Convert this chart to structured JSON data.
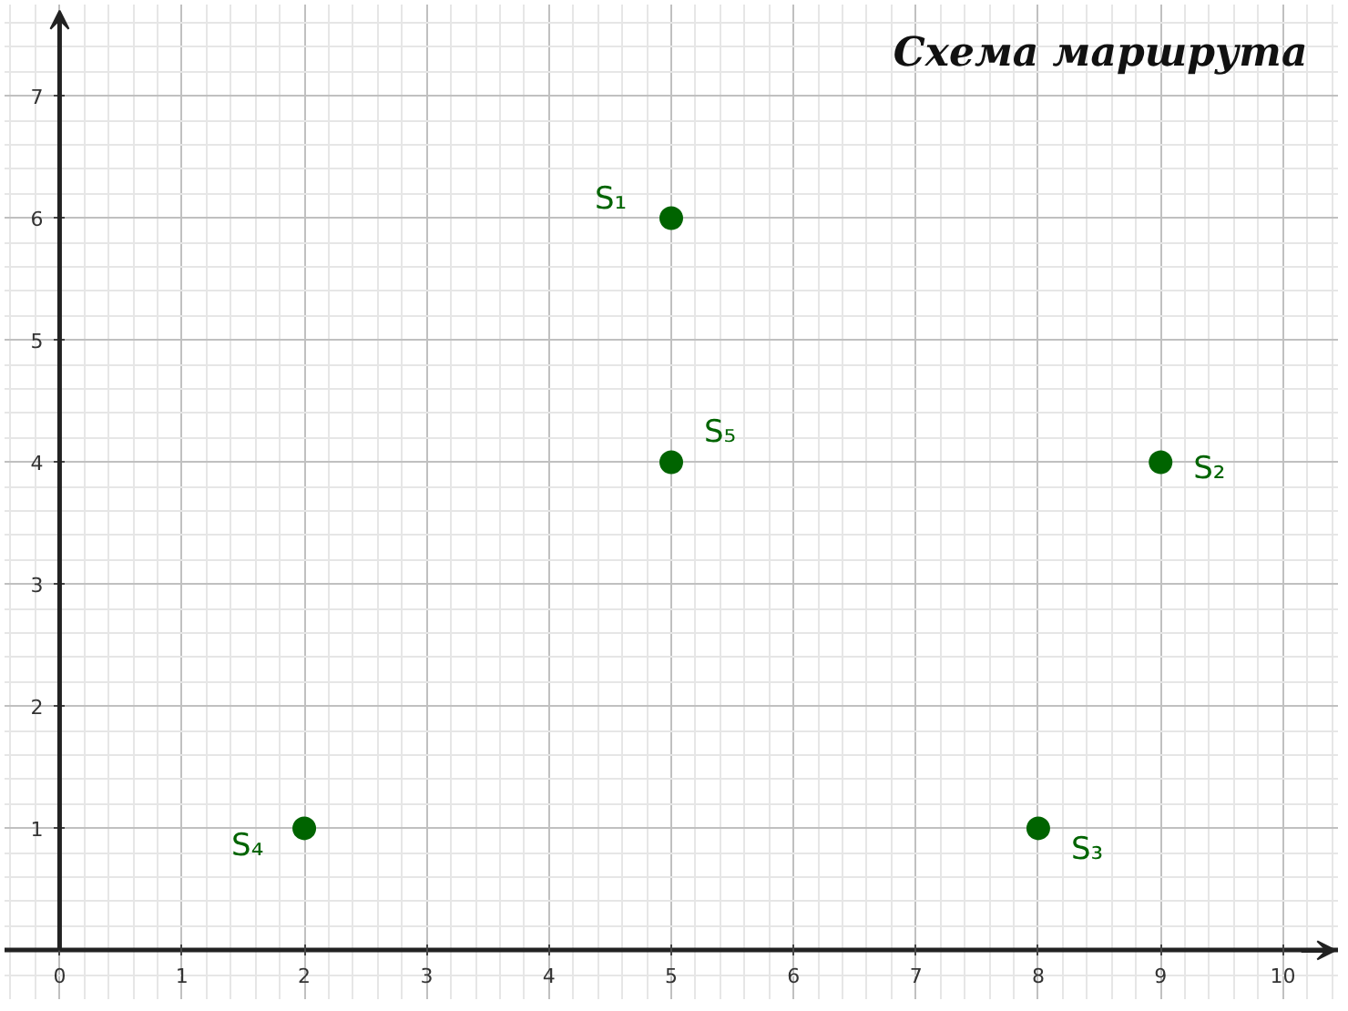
{
  "chart_data": {
    "type": "scatter",
    "title": "Схема маршрута",
    "x": [
      5,
      9,
      8,
      2,
      5
    ],
    "values": [
      6,
      4,
      1,
      1,
      4
    ],
    "color": "#006400",
    "marker": "circle",
    "annotations": [
      {
        "text": "S₁",
        "x": 5,
        "y": 6
      },
      {
        "text": "S₂",
        "x": 9,
        "y": 4
      },
      {
        "text": "S₃",
        "x": 8,
        "y": 1
      },
      {
        "text": "S₄",
        "x": 2,
        "y": 1
      },
      {
        "text": "S₅",
        "x": 5,
        "y": 4
      }
    ],
    "xlim": [
      -0.45,
      10.45
    ],
    "ylim": [
      -0.4,
      7.75
    ],
    "xticks": [
      0,
      1,
      2,
      3,
      4,
      5,
      6,
      7,
      8,
      9,
      10
    ],
    "yticks": [
      1,
      2,
      3,
      4,
      5,
      6,
      7
    ],
    "grid": true
  }
}
